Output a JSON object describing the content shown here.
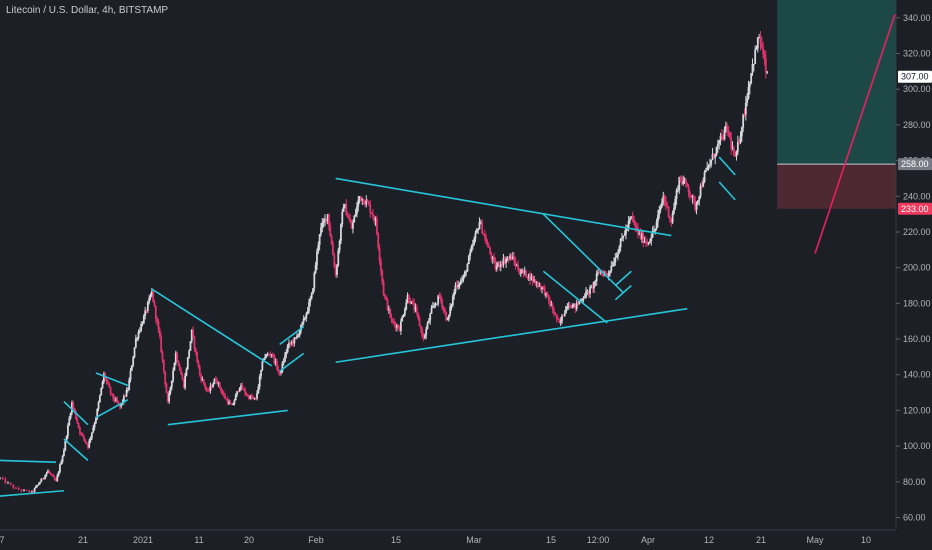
{
  "chart_data": {
    "type": "candlestick",
    "title": "Litecoin / U.S. Dollar, 4h, BITSTAMP",
    "symbol": "LTCUSD",
    "interval": "4h",
    "exchange": "BITSTAMP",
    "yaxis": {
      "ticks": [
        60,
        80,
        100,
        120,
        140,
        160,
        180,
        200,
        220,
        240,
        260,
        280,
        300,
        320,
        340
      ],
      "ylim": [
        53,
        350
      ],
      "position": "right"
    },
    "xaxis": {
      "labels": [
        "7",
        "21",
        "2021",
        "11",
        "20",
        "Feb",
        "15",
        "Mar",
        "15",
        "12:00",
        "Apr",
        "12",
        "21",
        "May",
        "10"
      ]
    },
    "price_labels": [
      {
        "name": "target",
        "value": 307,
        "text": "307.00",
        "color": "#ffffff",
        "text_color": "#131722"
      },
      {
        "name": "entry",
        "value": 258,
        "text": "258.00",
        "color": "#787b86",
        "text_color": "#ffffff"
      },
      {
        "name": "stop",
        "value": 233,
        "text": "233.00",
        "color": "#ef3a5d",
        "text_color": "#ffffff"
      }
    ],
    "position": {
      "type": "long",
      "entry": 258,
      "take_profit_top": 350,
      "stop": 233,
      "profit_color": "#1e6b60",
      "loss_color": "#6e2f3a"
    },
    "price_path": [
      {
        "d": "Dec 28",
        "p": 82
      },
      {
        "d": "Dec 30",
        "p": 76
      },
      {
        "d": "Jan 1",
        "p": 74
      },
      {
        "d": "Jan 2",
        "p": 80
      },
      {
        "d": "Jan 3",
        "p": 86
      },
      {
        "d": "Jan 4",
        "p": 80
      },
      {
        "d": "Jan 5",
        "p": 98
      },
      {
        "d": "Jan 6",
        "p": 124
      },
      {
        "d": "Jan 7",
        "p": 108
      },
      {
        "d": "Jan 8",
        "p": 100
      },
      {
        "d": "Jan 9",
        "p": 116
      },
      {
        "d": "Jan 10",
        "p": 140
      },
      {
        "d": "Jan 11",
        "p": 128
      },
      {
        "d": "Jan 12",
        "p": 122
      },
      {
        "d": "Jan 13",
        "p": 132
      },
      {
        "d": "Jan 14",
        "p": 160
      },
      {
        "d": "Jan 15",
        "p": 172
      },
      {
        "d": "Jan 16",
        "p": 186
      },
      {
        "d": "Jan 17",
        "p": 160
      },
      {
        "d": "Jan 18",
        "p": 124
      },
      {
        "d": "Jan 19",
        "p": 152
      },
      {
        "d": "Jan 20",
        "p": 134
      },
      {
        "d": "Jan 21",
        "p": 164
      },
      {
        "d": "Jan 22",
        "p": 140
      },
      {
        "d": "Jan 23",
        "p": 130
      },
      {
        "d": "Jan 24",
        "p": 138
      },
      {
        "d": "Jan 25",
        "p": 128
      },
      {
        "d": "Jan 26",
        "p": 122
      },
      {
        "d": "Jan 27",
        "p": 134
      },
      {
        "d": "Jan 28",
        "p": 128
      },
      {
        "d": "Jan 29",
        "p": 126
      },
      {
        "d": "Jan 30",
        "p": 150
      },
      {
        "d": "Jan 31",
        "p": 152
      },
      {
        "d": "Feb 1",
        "p": 140
      },
      {
        "d": "Feb 2",
        "p": 156
      },
      {
        "d": "Feb 3",
        "p": 160
      },
      {
        "d": "Feb 4",
        "p": 170
      },
      {
        "d": "Feb 5",
        "p": 184
      },
      {
        "d": "Feb 6",
        "p": 220
      },
      {
        "d": "Feb 7",
        "p": 230
      },
      {
        "d": "Feb 8",
        "p": 196
      },
      {
        "d": "Feb 9",
        "p": 236
      },
      {
        "d": "Feb 10",
        "p": 222
      },
      {
        "d": "Feb 11",
        "p": 240
      },
      {
        "d": "Feb 12",
        "p": 236
      },
      {
        "d": "Feb 13",
        "p": 226
      },
      {
        "d": "Feb 14",
        "p": 186
      },
      {
        "d": "Feb 15",
        "p": 170
      },
      {
        "d": "Feb 16",
        "p": 166
      },
      {
        "d": "Feb 17",
        "p": 184
      },
      {
        "d": "Feb 18",
        "p": 176
      },
      {
        "d": "Feb 19",
        "p": 160
      },
      {
        "d": "Feb 20",
        "p": 176
      },
      {
        "d": "Feb 21",
        "p": 184
      },
      {
        "d": "Feb 22",
        "p": 170
      },
      {
        "d": "Feb 23",
        "p": 190
      },
      {
        "d": "Feb 24",
        "p": 194
      },
      {
        "d": "Feb 25",
        "p": 210
      },
      {
        "d": "Feb 26",
        "p": 226
      },
      {
        "d": "Feb 27",
        "p": 212
      },
      {
        "d": "Feb 28",
        "p": 200
      },
      {
        "d": "Mar 1",
        "p": 204
      },
      {
        "d": "Mar 2",
        "p": 206
      },
      {
        "d": "Mar 3",
        "p": 198
      },
      {
        "d": "Mar 4",
        "p": 196
      },
      {
        "d": "Mar 5",
        "p": 192
      },
      {
        "d": "Mar 6",
        "p": 188
      },
      {
        "d": "Mar 7",
        "p": 178
      },
      {
        "d": "Mar 8",
        "p": 168
      },
      {
        "d": "Mar 9",
        "p": 180
      },
      {
        "d": "Mar 10",
        "p": 178
      },
      {
        "d": "Mar 11",
        "p": 184
      },
      {
        "d": "Mar 12",
        "p": 188
      },
      {
        "d": "Mar 13",
        "p": 198
      },
      {
        "d": "Mar 14",
        "p": 196
      },
      {
        "d": "Mar 15",
        "p": 206
      },
      {
        "d": "Mar 16",
        "p": 218
      },
      {
        "d": "Mar 17",
        "p": 228
      },
      {
        "d": "Mar 18",
        "p": 218
      },
      {
        "d": "Mar 19",
        "p": 214
      },
      {
        "d": "Mar 20",
        "p": 222
      },
      {
        "d": "Mar 21",
        "p": 240
      },
      {
        "d": "Mar 22",
        "p": 226
      },
      {
        "d": "Mar 23",
        "p": 250
      },
      {
        "d": "Mar 24",
        "p": 246
      },
      {
        "d": "Mar 25",
        "p": 234
      },
      {
        "d": "Mar 26",
        "p": 250
      },
      {
        "d": "Mar 27",
        "p": 260
      },
      {
        "d": "Mar 28",
        "p": 270
      },
      {
        "d": "Mar 29",
        "p": 278
      },
      {
        "d": "Mar 30",
        "p": 260
      },
      {
        "d": "Mar 31",
        "p": 284
      },
      {
        "d": "Apr 1",
        "p": 310
      },
      {
        "d": "Apr 2",
        "p": 330
      },
      {
        "d": "Apr 3",
        "p": 307
      }
    ],
    "trendlines": [
      {
        "name": "early-channel-upper",
        "color": "#26c6da",
        "points": [
          [
            "Dec 28",
            92
          ],
          [
            "Jan 4",
            91
          ]
        ]
      },
      {
        "name": "early-channel-lower",
        "color": "#26c6da",
        "points": [
          [
            "Dec 28",
            72
          ],
          [
            "Jan 5",
            75
          ]
        ]
      },
      {
        "name": "flag-1-upper",
        "color": "#26c6da",
        "points": [
          [
            "Jan 5",
            125
          ],
          [
            "Jan 8",
            112
          ]
        ]
      },
      {
        "name": "flag-1-lower",
        "color": "#26c6da",
        "points": [
          [
            "Jan 5",
            104
          ],
          [
            "Jan 8",
            92
          ]
        ]
      },
      {
        "name": "flag-2-upper",
        "color": "#26c6da",
        "points": [
          [
            "Jan 9",
            141
          ],
          [
            "Jan 13",
            134
          ]
        ]
      },
      {
        "name": "flag-2-lower",
        "color": "#26c6da",
        "points": [
          [
            "Jan 9",
            116
          ],
          [
            "Jan 13",
            126
          ]
        ]
      },
      {
        "name": "triangle-1-upper",
        "color": "#26c6da",
        "points": [
          [
            "Jan 16",
            188
          ],
          [
            "Jan 31",
            145
          ]
        ]
      },
      {
        "name": "triangle-1-lower",
        "color": "#26c6da",
        "points": [
          [
            "Jan 18",
            112
          ],
          [
            "Feb 2",
            120
          ]
        ]
      },
      {
        "name": "flag-3-upper",
        "color": "#26c6da",
        "points": [
          [
            "Feb 1",
            157
          ],
          [
            "Feb 4",
            167
          ]
        ]
      },
      {
        "name": "flag-3-lower",
        "color": "#26c6da",
        "points": [
          [
            "Feb 1",
            142
          ],
          [
            "Feb 4",
            152
          ]
        ]
      },
      {
        "name": "big-triangle-upper",
        "color": "#26c6da",
        "points": [
          [
            "Feb 8",
            250
          ],
          [
            "Mar 22",
            218
          ]
        ]
      },
      {
        "name": "big-triangle-lower",
        "color": "#26c6da",
        "points": [
          [
            "Feb 8",
            147
          ],
          [
            "Mar 24",
            177
          ]
        ]
      },
      {
        "name": "wedge-upper",
        "color": "#26c6da",
        "points": [
          [
            "Mar 6",
            230
          ],
          [
            "Mar 16",
            186
          ]
        ]
      },
      {
        "name": "wedge-lower",
        "color": "#26c6da",
        "points": [
          [
            "Mar 6",
            198
          ],
          [
            "Mar 14",
            169
          ]
        ]
      },
      {
        "name": "flag-4-upper",
        "color": "#26c6da",
        "points": [
          [
            "Mar 15",
            190
          ],
          [
            "Mar 17",
            198
          ]
        ]
      },
      {
        "name": "flag-4-lower",
        "color": "#26c6da",
        "points": [
          [
            "Mar 15",
            182
          ],
          [
            "Mar 17",
            190
          ]
        ]
      },
      {
        "name": "flag-5-upper",
        "color": "#26c6da",
        "points": [
          [
            "Mar 28",
            262
          ],
          [
            "Mar 30",
            252
          ]
        ]
      },
      {
        "name": "flag-5-lower",
        "color": "#26c6da",
        "points": [
          [
            "Mar 28",
            248
          ],
          [
            "Mar 30",
            238
          ]
        ]
      },
      {
        "name": "projection",
        "color": "#e91e63",
        "points": [
          [
            "Apr 9",
            208
          ],
          [
            "Apr 19",
            342
          ]
        ]
      }
    ],
    "colors": {
      "background": "#1c1f26",
      "up": "#d6d8de",
      "down": "#e0336a",
      "trendline": "#26c6da",
      "axis_text": "#b2b5be"
    },
    "grid": false,
    "legend": "none"
  }
}
